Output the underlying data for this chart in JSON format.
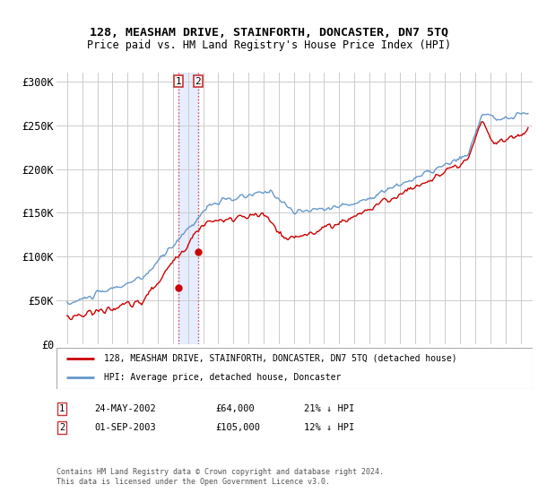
{
  "title": "128, MEASHAM DRIVE, STAINFORTH, DONCASTER, DN7 5TQ",
  "subtitle": "Price paid vs. HM Land Registry's House Price Index (HPI)",
  "ylabel_ticks": [
    "£0",
    "£50K",
    "£100K",
    "£150K",
    "£200K",
    "£250K",
    "£300K"
  ],
  "ytick_values": [
    0,
    50000,
    100000,
    150000,
    200000,
    250000,
    300000
  ],
  "ylim": [
    0,
    310000
  ],
  "t1_year": 2002.386,
  "t2_year": 2003.664,
  "t1_price": 64000,
  "t2_price": 105000,
  "transaction1_date": "24-MAY-2002",
  "transaction1_note": "21% ↓ HPI",
  "transaction2_date": "01-SEP-2003",
  "transaction2_note": "12% ↓ HPI",
  "legend_line1": "128, MEASHAM DRIVE, STAINFORTH, DONCASTER, DN7 5TQ (detached house)",
  "legend_line2": "HPI: Average price, detached house, Doncaster",
  "footer": "Contains HM Land Registry data © Crown copyright and database right 2024.\nThis data is licensed under the Open Government Licence v3.0.",
  "line_color_red": "#cc0000",
  "line_color_blue": "#6699cc",
  "vline_color_red": "#dd4444",
  "vline_color_blue": "#ccddff",
  "background": "#ffffff",
  "grid_color": "#cccccc",
  "xlim_left": 1994.3,
  "xlim_right": 2025.8
}
